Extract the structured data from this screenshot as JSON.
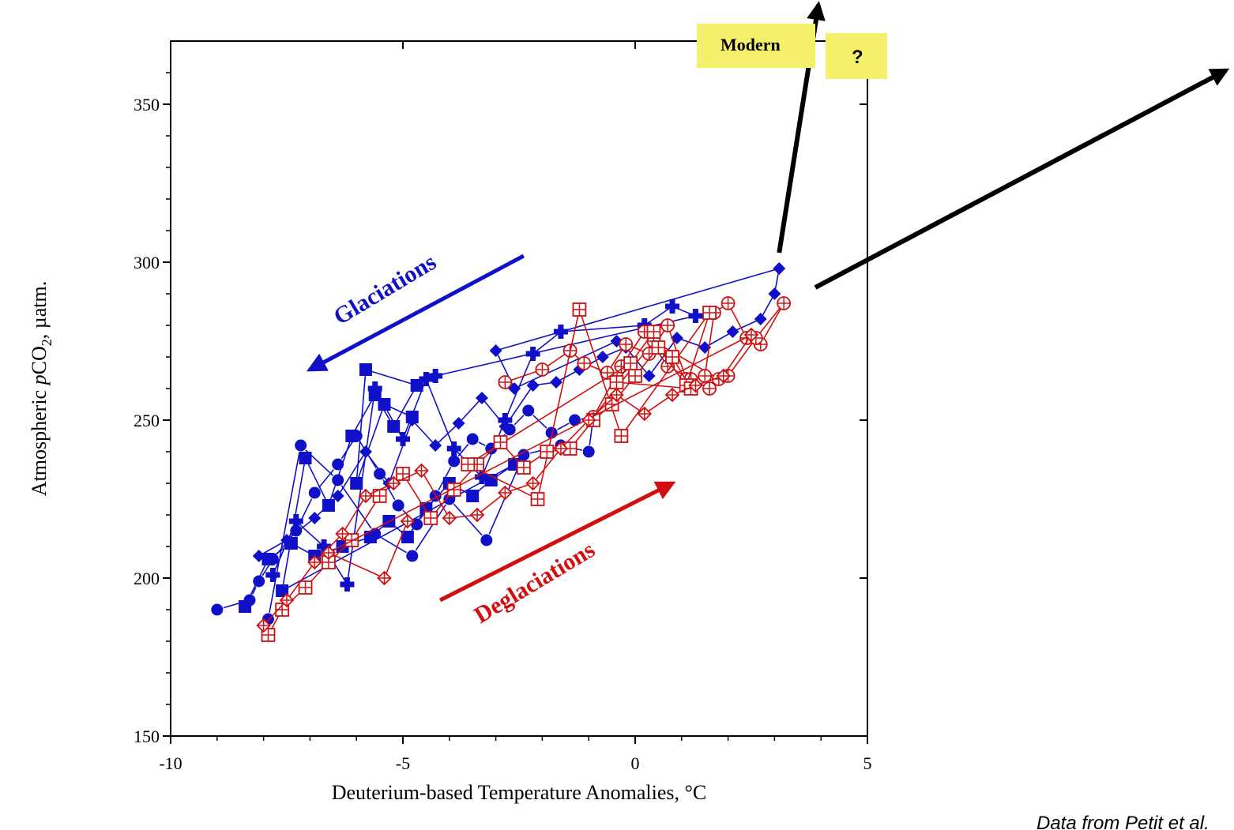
{
  "chart_data": {
    "type": "scatter",
    "xlabel": "Deuterium-based Temperature Anomalies, °C",
    "ylabel_prefix": "Atmospheric ",
    "ylabel_italic": "p",
    "ylabel_main": "CO",
    "ylabel_sub": "2",
    "ylabel_suffix": ", µatm.",
    "xlim": [
      -10,
      5
    ],
    "ylim": [
      150,
      370
    ],
    "x_ticks": [
      -10,
      -5,
      0,
      5
    ],
    "y_ticks": [
      150,
      200,
      250,
      300,
      350
    ],
    "x_tick_labels": [
      "-10",
      "-5",
      "0",
      "5"
    ],
    "y_tick_labels": [
      "150",
      "200",
      "250",
      "300",
      "350"
    ],
    "grid": false,
    "annotations": {
      "glaciations": "Glaciations",
      "deglaciations": "Deglaciations",
      "modern": "Modern",
      "question": "?",
      "credit": "Data from Petit et al."
    },
    "colors": {
      "glaciation": "#1010c8",
      "deglaciation": "#d01010",
      "label_box": "#f5f06a",
      "arrow": "#000000"
    },
    "series": [
      {
        "marker": "circle",
        "color": "#1010c8",
        "x": [
          -9.0,
          -8.3,
          -8.1,
          -7.8,
          -7.3,
          -6.9,
          -6.4,
          -6.0,
          -5.5,
          -5.1,
          -4.7,
          -4.3,
          -3.9,
          -3.5,
          -3.1,
          -2.7,
          -2.3,
          -1.8,
          -1.3,
          -0.9,
          -1.0,
          -1.6,
          -2.4,
          -3.2,
          -4.0,
          -4.8,
          -5.6,
          -6.4,
          -7.2,
          -7.9
        ],
        "y": [
          190,
          193,
          199,
          206,
          215,
          227,
          236,
          245,
          233,
          223,
          217,
          226,
          237,
          244,
          241,
          247,
          253,
          246,
          250,
          251,
          240,
          242,
          239,
          212,
          225,
          207,
          214,
          231,
          242,
          187
        ]
      },
      {
        "marker": "square",
        "color": "#1010c8",
        "x": [
          -8.4,
          -7.9,
          -7.4,
          -6.9,
          -6.3,
          -5.7,
          -5.3,
          -4.9,
          -4.5,
          -4.0,
          -3.5,
          -3.1,
          -2.6,
          -7.6,
          -7.1,
          -6.6,
          -6.1,
          -5.6,
          -5.2,
          -4.7,
          -5.8,
          -6.0,
          -5.4,
          -4.8
        ],
        "y": [
          191,
          206,
          211,
          207,
          210,
          213,
          218,
          213,
          222,
          230,
          226,
          231,
          236,
          196,
          238,
          223,
          245,
          258,
          248,
          261,
          266,
          230,
          255,
          251
        ]
      },
      {
        "marker": "plus",
        "color": "#1010c8",
        "x": [
          -7.8,
          -7.3,
          -6.7,
          -6.2,
          -5.6,
          -5.0,
          -4.5,
          -3.9,
          -3.3,
          -2.8,
          -2.2,
          -1.6,
          0.2,
          0.8,
          1.3,
          -4.3
        ],
        "y": [
          201,
          218,
          210,
          198,
          260,
          244,
          263,
          241,
          232,
          250,
          271,
          278,
          280,
          286,
          283,
          264
        ]
      },
      {
        "marker": "diamond",
        "color": "#1010c8",
        "x": [
          -8.1,
          -7.5,
          -6.9,
          -6.4,
          -5.8,
          -5.3,
          -4.8,
          -4.3,
          -3.8,
          -3.3,
          -2.8,
          -2.2,
          -1.7,
          -1.2,
          -0.7,
          -0.2,
          0.3,
          0.9,
          1.5,
          2.1,
          2.7,
          3.0,
          3.1,
          -3.0,
          -2.6,
          -0.4
        ],
        "y": [
          207,
          212,
          219,
          226,
          240,
          230,
          250,
          242,
          249,
          257,
          248,
          261,
          262,
          266,
          270,
          273,
          264,
          276,
          273,
          278,
          282,
          290,
          298,
          272,
          260,
          275
        ]
      },
      {
        "marker": "circle-plus",
        "color": "#d01010",
        "x": [
          -2.8,
          -2.0,
          -1.4,
          -1.1,
          -0.6,
          -0.2,
          0.3,
          0.7,
          1.1,
          1.5,
          1.7,
          2.0,
          2.4,
          2.7,
          3.2,
          2.6,
          2.0,
          1.6,
          1.2,
          0.7,
          0.2,
          -0.3,
          -0.9,
          0.4,
          1.8
        ],
        "y": [
          262,
          266,
          272,
          268,
          265,
          274,
          271,
          280,
          263,
          264,
          284,
          287,
          276,
          274,
          287,
          276,
          264,
          260,
          263,
          267,
          278,
          267,
          251,
          275,
          263
        ]
      },
      {
        "marker": "square-plus",
        "color": "#d01010",
        "x": [
          -7.9,
          -7.6,
          -7.1,
          -6.6,
          -6.1,
          -5.5,
          -5.0,
          -4.4,
          -3.9,
          -3.4,
          -2.9,
          -2.4,
          -1.9,
          -1.4,
          -0.9,
          -0.5,
          0.0,
          0.5,
          1.1,
          1.6,
          -0.3,
          -1.2,
          -2.1,
          -3.6,
          -0.1,
          0.4,
          -0.4,
          1.2,
          0.8
        ],
        "y": [
          182,
          190,
          197,
          205,
          212,
          226,
          233,
          219,
          228,
          236,
          243,
          235,
          240,
          241,
          250,
          255,
          264,
          273,
          261,
          284,
          245,
          285,
          225,
          236,
          268,
          278,
          262,
          260,
          270
        ]
      },
      {
        "marker": "diamond-plus",
        "color": "#d01010",
        "x": [
          -8.0,
          -7.5,
          -6.9,
          -6.3,
          -5.8,
          -5.2,
          -4.6,
          -4.0,
          -3.4,
          -2.8,
          -2.2,
          -1.6,
          -1.0,
          -0.4,
          0.2,
          0.8,
          1.3,
          1.9,
          2.5,
          -6.6,
          -5.4,
          -4.9
        ],
        "y": [
          185,
          193,
          205,
          214,
          226,
          230,
          234,
          219,
          220,
          227,
          230,
          241,
          250,
          258,
          252,
          258,
          261,
          264,
          277,
          208,
          200,
          218
        ]
      }
    ],
    "arrows": [
      {
        "name": "glaciations",
        "color": "#1010c8",
        "from": [
          -2.4,
          302
        ],
        "to": [
          -7.0,
          266
        ]
      },
      {
        "name": "deglaciations",
        "color": "#d01010",
        "from": [
          -4.2,
          193
        ],
        "to": [
          0.8,
          230
        ]
      },
      {
        "name": "modern",
        "color": "#000000",
        "from": [
          3.1,
          303
        ],
        "to": [
          4.3,
          388
        ]
      }
    ]
  }
}
